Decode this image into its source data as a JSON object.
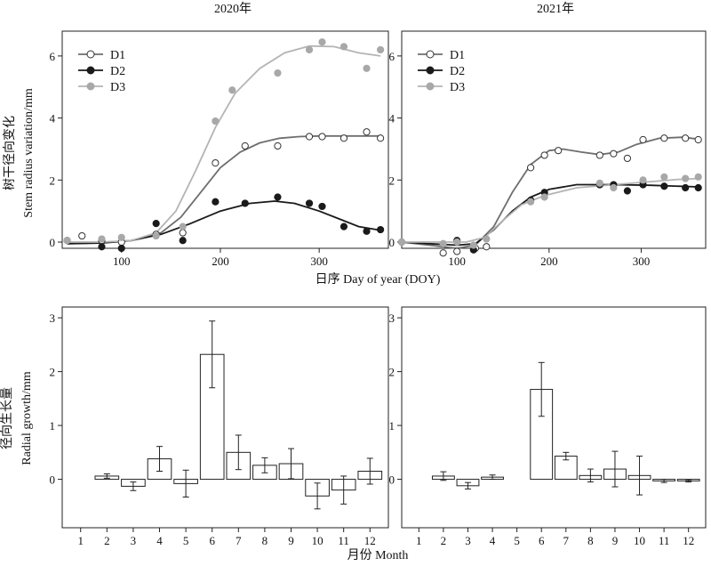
{
  "figure": {
    "ylabel_top": [
      "树干径向变化",
      "Stem radius variation/mm"
    ],
    "xlabel_top": "日序 Day of year (DOY)",
    "ylabel_bottom": [
      "径向生长量",
      "Radial growth/mm"
    ],
    "xlabel_bottom": "月份 Month"
  },
  "colors": {
    "D1": "#ffffff",
    "D2": "#1a1a1a",
    "D3": "#a8a8a8",
    "fit_D1": "#6e6e6e",
    "fit_D2": "#1a1a1a",
    "fit_D3": "#b4b4b4"
  },
  "chart_data": [
    {
      "id": "dd2020",
      "type": "scatter",
      "title": "2020年",
      "xlim": [
        40,
        370
      ],
      "ylim": [
        -0.2,
        6.8
      ],
      "xticks": [
        100,
        200,
        300
      ],
      "yticks": [
        0,
        2,
        4,
        6
      ],
      "legend": "top-left",
      "series": [
        {
          "name": "D1",
          "marker": "open-circle",
          "points": [
            [
              45,
              0.05
            ],
            [
              60,
              0.2
            ],
            [
              80,
              0.05
            ],
            [
              100,
              0.0
            ],
            [
              135,
              0.25
            ],
            [
              162,
              0.3
            ],
            [
              195,
              2.55
            ],
            [
              225,
              3.1
            ],
            [
              258,
              3.1
            ],
            [
              290,
              3.4
            ],
            [
              303,
              3.4
            ],
            [
              325,
              3.35
            ],
            [
              348,
              3.55
            ],
            [
              362,
              3.35
            ]
          ],
          "fit": [
            [
              45,
              -0.05
            ],
            [
              80,
              -0.02
            ],
            [
              110,
              0.05
            ],
            [
              140,
              0.3
            ],
            [
              160,
              0.8
            ],
            [
              180,
              1.6
            ],
            [
              200,
              2.4
            ],
            [
              220,
              2.9
            ],
            [
              240,
              3.2
            ],
            [
              260,
              3.35
            ],
            [
              280,
              3.4
            ],
            [
              300,
              3.42
            ],
            [
              330,
              3.42
            ],
            [
              362,
              3.42
            ]
          ]
        },
        {
          "name": "D2",
          "marker": "filled-circle",
          "points": [
            [
              80,
              -0.15
            ],
            [
              100,
              -0.2
            ],
            [
              135,
              0.6
            ],
            [
              162,
              0.05
            ],
            [
              195,
              1.3
            ],
            [
              225,
              1.25
            ],
            [
              258,
              1.45
            ],
            [
              290,
              1.25
            ],
            [
              303,
              1.15
            ],
            [
              325,
              0.5
            ],
            [
              348,
              0.35
            ],
            [
              362,
              0.4
            ]
          ],
          "fit": [
            [
              45,
              -0.05
            ],
            [
              80,
              -0.03
            ],
            [
              110,
              0.05
            ],
            [
              140,
              0.25
            ],
            [
              170,
              0.6
            ],
            [
              200,
              1.0
            ],
            [
              230,
              1.25
            ],
            [
              255,
              1.32
            ],
            [
              275,
              1.25
            ],
            [
              300,
              1.0
            ],
            [
              320,
              0.75
            ],
            [
              340,
              0.5
            ],
            [
              362,
              0.38
            ]
          ]
        },
        {
          "name": "D3",
          "marker": "gray-circle",
          "points": [
            [
              45,
              0.05
            ],
            [
              80,
              0.1
            ],
            [
              100,
              0.15
            ],
            [
              135,
              0.2
            ],
            [
              162,
              0.5
            ],
            [
              195,
              3.9
            ],
            [
              212,
              4.9
            ],
            [
              258,
              5.45
            ],
            [
              290,
              6.2
            ],
            [
              303,
              6.45
            ],
            [
              325,
              6.3
            ],
            [
              348,
              5.6
            ],
            [
              362,
              6.2
            ]
          ],
          "fit": [
            [
              45,
              0.0
            ],
            [
              80,
              0.0
            ],
            [
              110,
              0.05
            ],
            [
              135,
              0.3
            ],
            [
              155,
              1.0
            ],
            [
              175,
              2.3
            ],
            [
              195,
              3.7
            ],
            [
              215,
              4.8
            ],
            [
              240,
              5.6
            ],
            [
              265,
              6.1
            ],
            [
              290,
              6.32
            ],
            [
              315,
              6.3
            ],
            [
              340,
              6.1
            ],
            [
              362,
              6.0
            ]
          ]
        }
      ]
    },
    {
      "id": "dd2021",
      "type": "scatter",
      "title": "2021年",
      "xlim": [
        40,
        370
      ],
      "ylim": [
        -0.2,
        6.8
      ],
      "xticks": [
        100,
        200,
        300
      ],
      "yticks": [
        0,
        2,
        4,
        6
      ],
      "legend": "top-left",
      "series": [
        {
          "name": "D1",
          "marker": "open-circle",
          "points": [
            [
              40,
              0.0
            ],
            [
              85,
              -0.35
            ],
            [
              100,
              -0.3
            ],
            [
              120,
              -0.2
            ],
            [
              132,
              -0.15
            ],
            [
              180,
              2.4
            ],
            [
              195,
              2.8
            ],
            [
              210,
              2.95
            ],
            [
              255,
              2.8
            ],
            [
              270,
              2.85
            ],
            [
              285,
              2.7
            ],
            [
              302,
              3.3
            ],
            [
              325,
              3.35
            ],
            [
              348,
              3.35
            ],
            [
              362,
              3.3
            ]
          ],
          "fit": [
            [
              40,
              0.0
            ],
            [
              70,
              -0.1
            ],
            [
              100,
              -0.2
            ],
            [
              120,
              -0.1
            ],
            [
              140,
              0.5
            ],
            [
              160,
              1.6
            ],
            [
              180,
              2.5
            ],
            [
              200,
              2.95
            ],
            [
              215,
              3.0
            ],
            [
              235,
              2.9
            ],
            [
              255,
              2.82
            ],
            [
              275,
              2.9
            ],
            [
              295,
              3.15
            ],
            [
              320,
              3.35
            ],
            [
              345,
              3.38
            ],
            [
              362,
              3.32
            ]
          ]
        },
        {
          "name": "D2",
          "marker": "filled-circle",
          "points": [
            [
              100,
              0.05
            ],
            [
              118,
              -0.25
            ],
            [
              180,
              1.35
            ],
            [
              195,
              1.6
            ],
            [
              255,
              1.85
            ],
            [
              270,
              1.85
            ],
            [
              285,
              1.65
            ],
            [
              302,
              1.85
            ],
            [
              325,
              1.8
            ],
            [
              348,
              1.75
            ],
            [
              362,
              1.75
            ]
          ],
          "fit": [
            [
              40,
              0.0
            ],
            [
              70,
              -0.05
            ],
            [
              100,
              -0.1
            ],
            [
              120,
              -0.05
            ],
            [
              140,
              0.4
            ],
            [
              160,
              1.0
            ],
            [
              180,
              1.45
            ],
            [
              200,
              1.7
            ],
            [
              230,
              1.85
            ],
            [
              270,
              1.85
            ],
            [
              310,
              1.83
            ],
            [
              362,
              1.78
            ]
          ]
        },
        {
          "name": "D3",
          "marker": "gray-circle",
          "points": [
            [
              40,
              0.0
            ],
            [
              85,
              -0.05
            ],
            [
              100,
              0.0
            ],
            [
              118,
              -0.1
            ],
            [
              132,
              0.1
            ],
            [
              180,
              1.3
            ],
            [
              195,
              1.45
            ],
            [
              255,
              1.9
            ],
            [
              270,
              1.75
            ],
            [
              302,
              2.0
            ],
            [
              325,
              2.1
            ],
            [
              348,
              2.05
            ],
            [
              362,
              2.1
            ]
          ],
          "fit": [
            [
              40,
              0.0
            ],
            [
              80,
              0.0
            ],
            [
              110,
              0.0
            ],
            [
              130,
              0.15
            ],
            [
              150,
              0.7
            ],
            [
              170,
              1.2
            ],
            [
              195,
              1.5
            ],
            [
              230,
              1.75
            ],
            [
              270,
              1.85
            ],
            [
              310,
              1.95
            ],
            [
              340,
              2.02
            ],
            [
              362,
              2.05
            ]
          ]
        }
      ]
    },
    {
      "id": "mg2020",
      "type": "bar",
      "categories": [
        "1",
        "2",
        "3",
        "4",
        "5",
        "6",
        "7",
        "8",
        "9",
        "10",
        "11",
        "12"
      ],
      "ylim": [
        -0.9,
        3.2
      ],
      "yticks": [
        0,
        1,
        2,
        3
      ],
      "values": [
        null,
        0.06,
        -0.13,
        0.38,
        -0.08,
        2.32,
        0.5,
        0.26,
        0.29,
        -0.31,
        -0.2,
        0.15
      ],
      "errors": [
        null,
        0.04,
        0.08,
        0.23,
        0.25,
        0.62,
        0.32,
        0.14,
        0.28,
        0.24,
        0.26,
        0.24
      ]
    },
    {
      "id": "mg2021",
      "type": "bar",
      "categories": [
        "1",
        "2",
        "3",
        "4",
        "5",
        "6",
        "7",
        "8",
        "9",
        "10",
        "11",
        "12"
      ],
      "ylim": [
        -0.9,
        3.2
      ],
      "yticks": [
        0,
        1,
        2,
        3
      ],
      "values": [
        null,
        0.06,
        -0.12,
        0.04,
        null,
        1.67,
        0.43,
        0.07,
        0.19,
        0.07,
        -0.03,
        -0.03
      ],
      "errors": [
        null,
        0.08,
        0.06,
        0.04,
        null,
        0.5,
        0.07,
        0.12,
        0.33,
        0.36,
        0.03,
        0.02
      ]
    }
  ]
}
